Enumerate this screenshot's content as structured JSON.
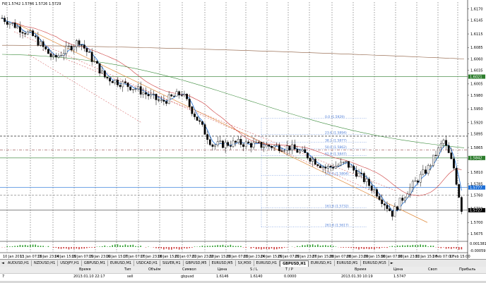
{
  "chart": {
    "header_text": "Fi0 1.5742 1.5746 1.5726 1.5729",
    "price_ticks": [
      "1.6170",
      "1.6145",
      "1.6115",
      "1.6085",
      "1.6060",
      "1.6035",
      "1.6005",
      "1.5980",
      "1.5950",
      "1.5920",
      "1.5895",
      "1.5865",
      "1.5840",
      "1.5810",
      "1.5785",
      "1.5760",
      "1.5730",
      "1.5700",
      "1.5675"
    ],
    "level_labels": [
      "1.6021",
      "1.5842",
      "1.5777",
      "1.5727"
    ],
    "indicator_ticks": [
      "0.001381",
      "-0.00059"
    ],
    "time_ticks": [
      "10 Jan 2013",
      "11 Jan 07:00",
      "13 Jan 23:00",
      "14 Jan 15:00",
      "15 Jan 07:00",
      "15 Jan 23:00",
      "16 Jan 15:00",
      "17 Jan 07:00",
      "17 Jan 23:00",
      "18 Jan 15:00",
      "21 Jan 07:00",
      "21 Jan 23:00",
      "22 Jan 15:00",
      "23 Jan 07:00",
      "23 Jan 23:00",
      "24 Jan 15:00",
      "25 Jan 07:00",
      "25 Jan 23:00",
      "27 Jan 15:00",
      "28 Jan 07:00",
      "28 Jan 23:00",
      "29 Jan 15:00",
      "30 Jan 07:00",
      "30 Jan 23:00",
      "31 Jan 15:00",
      "1 Feb 07:00",
      "1 Feb 15:00"
    ],
    "fib_labels": [
      "0.0 (1.5929)",
      "23.6 (1.5894)",
      "38.2 (1.5877)",
      "50.0 (1.5862)",
      "61.8 (1.5847)",
      "100.0 (1.5804)",
      "161.8 (1.5732)",
      "261.8 (1.5617)"
    ],
    "colors": {
      "candle": "#000000",
      "ma_fast": "#1e6fd6",
      "ma_mid": "#cc3a3a",
      "ma_slow": "#3c8c3c",
      "ma_long": "#8b5a3c",
      "fib": "#4a7ad6",
      "trend": "#e08a3a"
    }
  },
  "tabs": {
    "left_arrow": "◄",
    "right_arrow": "►",
    "items": [
      "AUDUSD,H1",
      "NZDUSD,H1",
      "USDJPY,H1",
      "GBPUSD,M1",
      "EURUSD,M1",
      "USDCAD,H1",
      "SILVER,H1",
      "GBPUSD,M5",
      "EURUSD,M5",
      "SX,M30",
      "EURUSD,H1",
      "GBPUSD,H1",
      "EURUSD,H1",
      "EURUSD,M1",
      "EURUSD,M15"
    ],
    "active_index": 11
  },
  "terminal": {
    "headers": [
      "Время",
      "Тип",
      "Объём",
      "Символ",
      "Цена",
      "S / L",
      "T / P",
      "Время",
      "Цена",
      "Своп",
      "Прибыль"
    ],
    "row": {
      "id": "7",
      "open_time": "2013.01.10 22:17",
      "type": "sell",
      "volume": "",
      "symbol": "gbpusd",
      "price": "1.6146",
      "sl": "1.6140",
      "tp": "0.0000",
      "close_time": "2013.01.30 10:19",
      "close_price": "1.5747",
      "swap": "",
      "profit": ""
    }
  }
}
